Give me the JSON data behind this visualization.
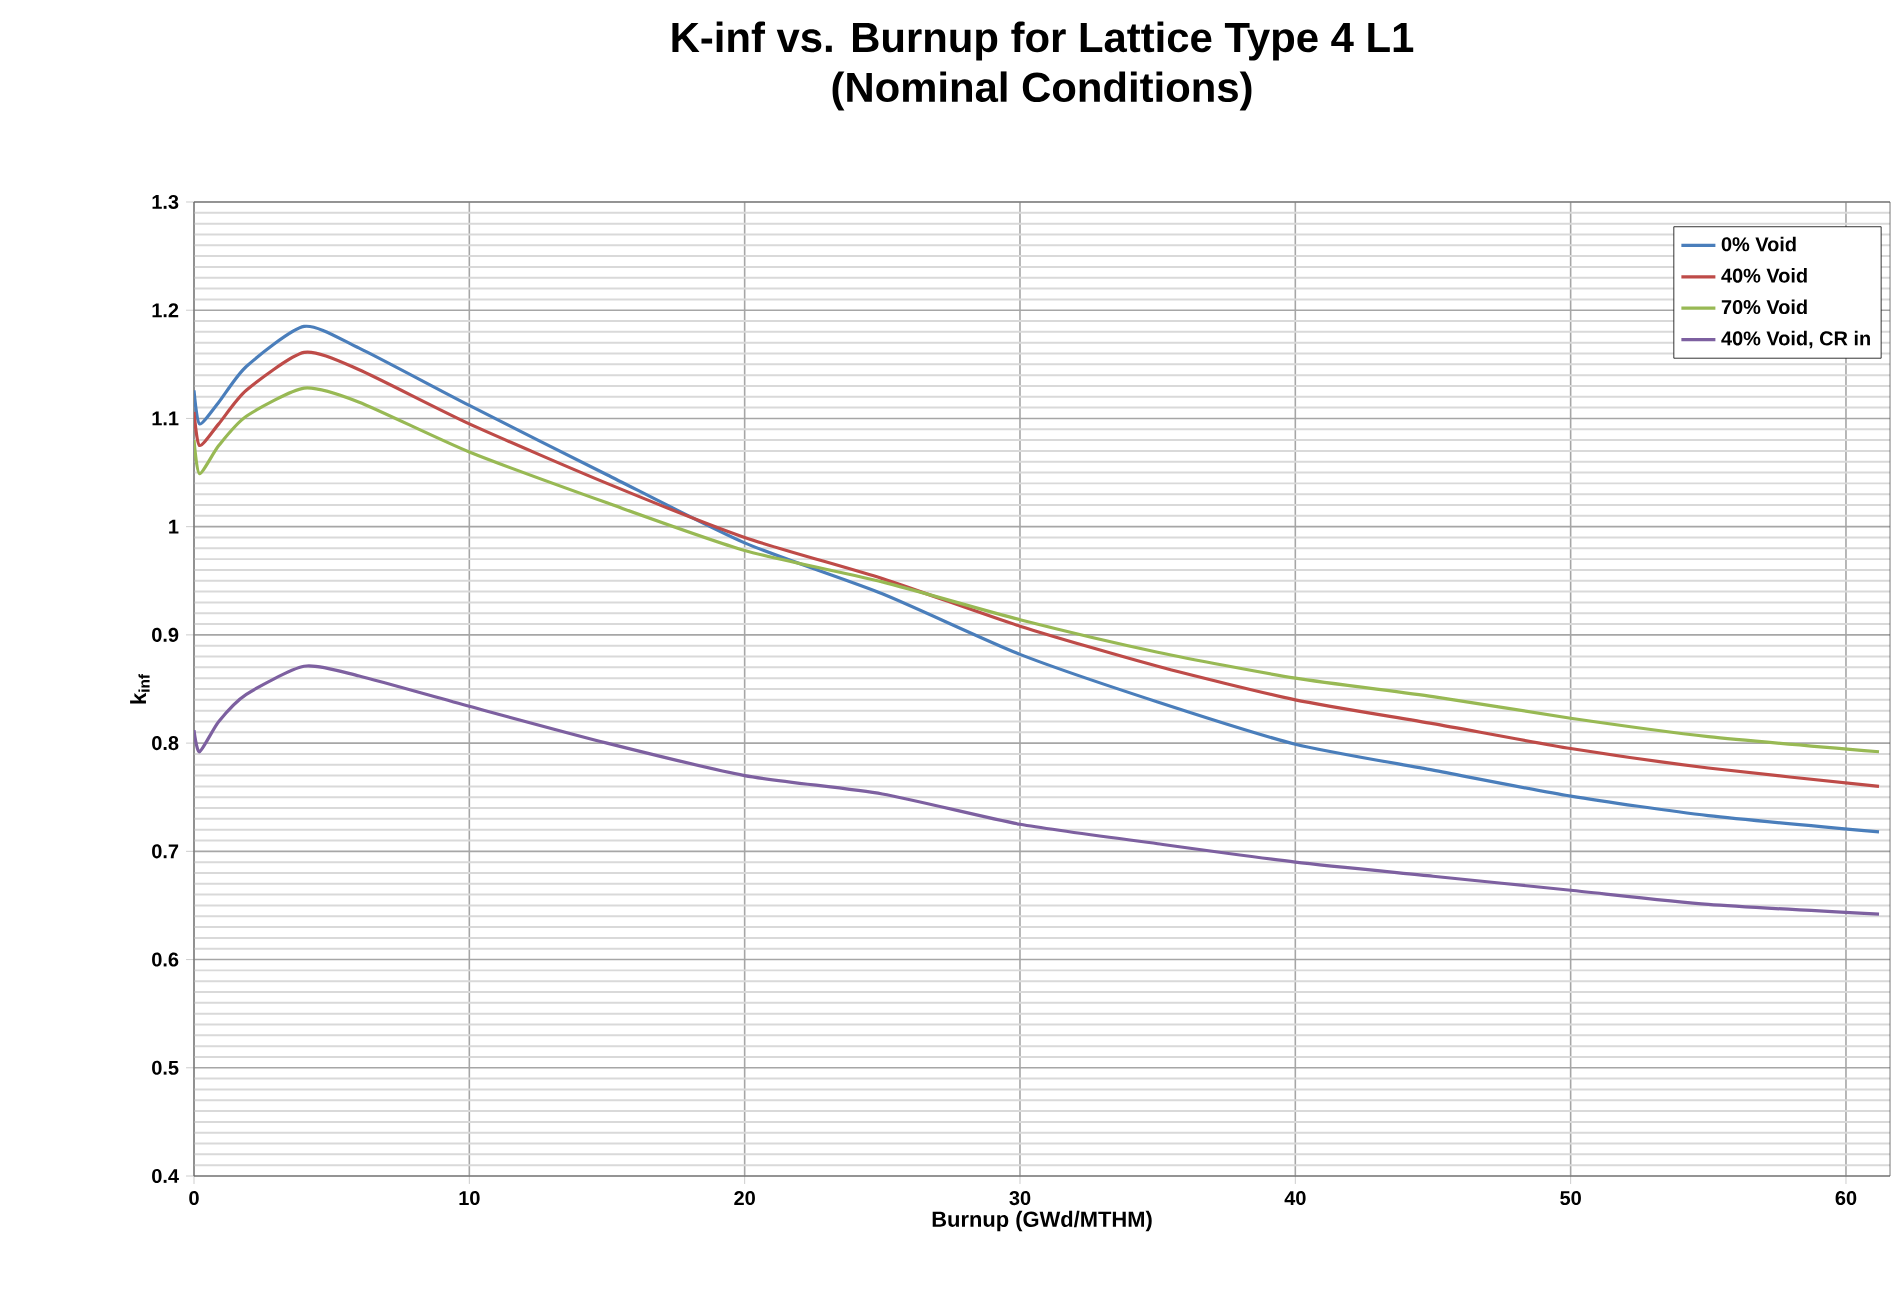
{
  "chart_data": {
    "type": "line",
    "title": "K-inf vs. Burnup for Lattice Type 4 L1",
    "subtitle": "(Nominal Conditions)",
    "xlabel": "Burnup (GWd/MTHM)",
    "ylabel": "k$_{inf}$",
    "xlim": [
      0,
      61.6
    ],
    "ylim": [
      0.4,
      1.3
    ],
    "xticks": [
      0,
      10,
      20,
      30,
      40,
      50,
      60
    ],
    "yticks": [
      0.4,
      0.5,
      0.6,
      0.7,
      0.8,
      0.9,
      1,
      1.1,
      1.2,
      1.3
    ],
    "grid": true,
    "legend": "top right",
    "marker": "none",
    "line_style": "solid",
    "series": [
      {
        "name": "0% Void",
        "color": "#4a7ebb",
        "x": [
          0,
          0.2,
          0.9,
          1.9,
          4,
          6,
          10,
          15,
          20,
          25,
          30,
          35,
          40,
          45,
          50,
          55,
          61.2
        ],
        "values": [
          1.126,
          1.095,
          1.115,
          1.148,
          1.185,
          1.165,
          1.112,
          1.048,
          0.985,
          0.938,
          0.882,
          0.838,
          0.799,
          0.775,
          0.751,
          0.733,
          0.718
        ]
      },
      {
        "name": "40% Void",
        "color": "#be4b48",
        "x": [
          0,
          0.2,
          0.9,
          1.9,
          4,
          6,
          10,
          15,
          20,
          25,
          30,
          35,
          40,
          45,
          50,
          55,
          61.2
        ],
        "values": [
          1.106,
          1.075,
          1.095,
          1.126,
          1.161,
          1.145,
          1.095,
          1.04,
          0.99,
          0.952,
          0.908,
          0.871,
          0.84,
          0.818,
          0.795,
          0.777,
          0.76
        ]
      },
      {
        "name": "70% Void",
        "color": "#98b954",
        "x": [
          0,
          0.2,
          0.9,
          1.9,
          4,
          6,
          10,
          15,
          20,
          25,
          30,
          35,
          40,
          45,
          50,
          55,
          61.2
        ],
        "values": [
          1.08,
          1.049,
          1.075,
          1.102,
          1.128,
          1.115,
          1.069,
          1.022,
          0.978,
          0.949,
          0.914,
          0.884,
          0.86,
          0.843,
          0.823,
          0.806,
          0.792
        ]
      },
      {
        "name": "40% Void, CR in",
        "color": "#7d60a0",
        "x": [
          0,
          0.2,
          0.9,
          1.9,
          4,
          6,
          10,
          15,
          20,
          25,
          30,
          35,
          40,
          45,
          50,
          55,
          61.2
        ],
        "values": [
          0.812,
          0.792,
          0.82,
          0.845,
          0.871,
          0.862,
          0.834,
          0.8,
          0.77,
          0.753,
          0.725,
          0.707,
          0.69,
          0.677,
          0.664,
          0.651,
          0.642
        ]
      }
    ]
  }
}
